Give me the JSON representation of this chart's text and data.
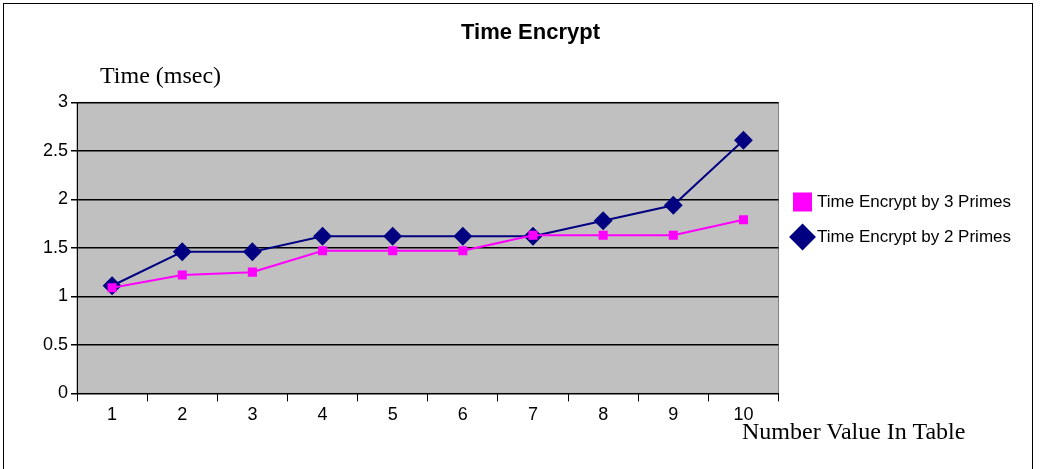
{
  "chart_data": {
    "type": "line",
    "title": "Time Encrypt",
    "xlabel": "Number Value In Table",
    "ylabel": "Time (msec)",
    "categories": [
      "1",
      "2",
      "3",
      "4",
      "5",
      "6",
      "7",
      "8",
      "9",
      "10"
    ],
    "series": [
      {
        "name": "Time Encrypt by 2 Primes",
        "color": "#000080",
        "marker": "diamond",
        "values": [
          1.11,
          1.46,
          1.46,
          1.62,
          1.62,
          1.62,
          1.62,
          1.78,
          1.94,
          2.61
        ]
      },
      {
        "name": "Time Encrypt by 3 Primes",
        "color": "#ff00ff",
        "marker": "square",
        "values": [
          1.09,
          1.22,
          1.25,
          1.47,
          1.47,
          1.47,
          1.63,
          1.63,
          1.63,
          1.79
        ]
      }
    ],
    "ylim": [
      0,
      3
    ],
    "yticks": [
      0,
      0.5,
      1,
      1.5,
      2,
      2.5,
      3
    ],
    "grid": "y",
    "legend": "right"
  }
}
